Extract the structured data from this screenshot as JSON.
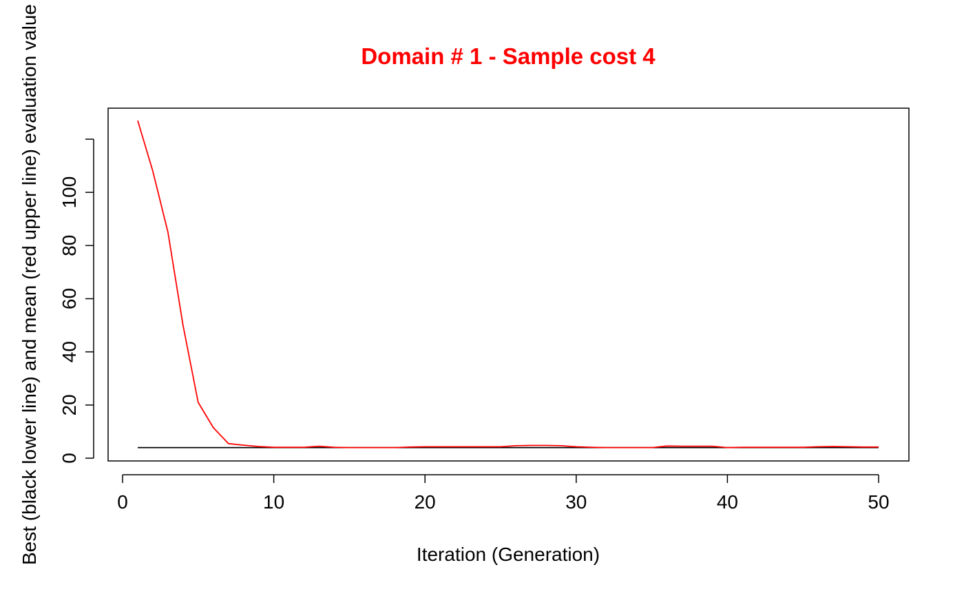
{
  "chart_data": {
    "type": "line",
    "title": "Domain # 1  - Sample cost 4",
    "title_color": "#ff0000",
    "xlabel": "Iteration (Generation)",
    "ylabel": "Best (black lower line) and mean (red upper line) evaluation value",
    "xlim": [
      0,
      50
    ],
    "ylim": [
      0,
      120
    ],
    "x_ticks": [
      0,
      10,
      20,
      30,
      40,
      50
    ],
    "y_ticks": [
      0,
      20,
      40,
      60,
      80,
      100
    ],
    "grid": false,
    "legend": "none",
    "x": [
      1,
      2,
      3,
      4,
      5,
      6,
      7,
      8,
      9,
      10,
      11,
      12,
      13,
      14,
      15,
      16,
      17,
      18,
      19,
      20,
      21,
      22,
      23,
      24,
      25,
      26,
      27,
      28,
      29,
      30,
      31,
      32,
      33,
      34,
      35,
      36,
      37,
      38,
      39,
      40,
      41,
      42,
      43,
      44,
      45,
      46,
      47,
      48,
      49,
      50
    ],
    "series": [
      {
        "color": "#000000",
        "values": [
          4,
          4,
          4,
          4,
          4,
          4,
          4,
          4,
          4,
          4,
          4,
          4,
          4,
          4,
          4,
          4,
          4,
          4,
          4,
          4,
          4,
          4,
          4,
          4,
          4,
          4,
          4,
          4,
          4,
          4,
          4,
          4,
          4,
          4,
          4,
          4,
          4,
          4,
          4,
          4,
          4,
          4,
          4,
          4,
          4,
          4,
          4,
          4,
          4,
          4
        ]
      },
      {
        "color": "#ff0000",
        "values": [
          127,
          108,
          85,
          50,
          21,
          11.5,
          5.5,
          4.9,
          4.4,
          4.1,
          4.1,
          4.1,
          4.5,
          4.1,
          4.0,
          4.0,
          4.0,
          4.0,
          4.2,
          4.3,
          4.3,
          4.3,
          4.3,
          4.3,
          4.3,
          4.7,
          4.8,
          4.8,
          4.7,
          4.3,
          4.1,
          4.0,
          4.0,
          4.0,
          4.0,
          4.6,
          4.5,
          4.5,
          4.5,
          4.0,
          4.1,
          4.1,
          4.1,
          4.1,
          4.1,
          4.3,
          4.4,
          4.3,
          4.2,
          4.2
        ]
      }
    ]
  }
}
